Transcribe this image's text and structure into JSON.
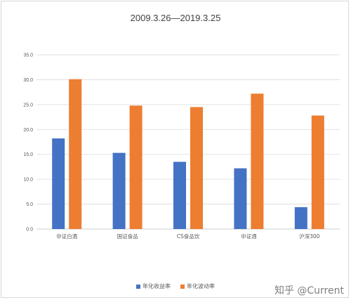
{
  "watermark": "知乎 @Current",
  "chart_data": {
    "type": "bar",
    "title": "2009.3.26—2019.3.25",
    "categories": [
      "中证白酒",
      "国证食品",
      "CS食品饮",
      "中证酒",
      "沪深300"
    ],
    "series": [
      {
        "name": "年化收益率",
        "color": "#4472c4",
        "values": [
          18.2,
          15.3,
          13.5,
          12.2,
          4.4
        ]
      },
      {
        "name": "年化波动率",
        "color": "#ed7d31",
        "values": [
          30.1,
          24.8,
          24.5,
          27.2,
          22.8
        ]
      }
    ],
    "ylim": [
      0,
      35
    ],
    "yticks": [
      "0.0",
      "5.0",
      "10.0",
      "15.0",
      "20.0",
      "25.0",
      "30.0",
      "35.0"
    ],
    "grid": true,
    "legend_position": "bottom",
    "xlabel": "",
    "ylabel": ""
  }
}
